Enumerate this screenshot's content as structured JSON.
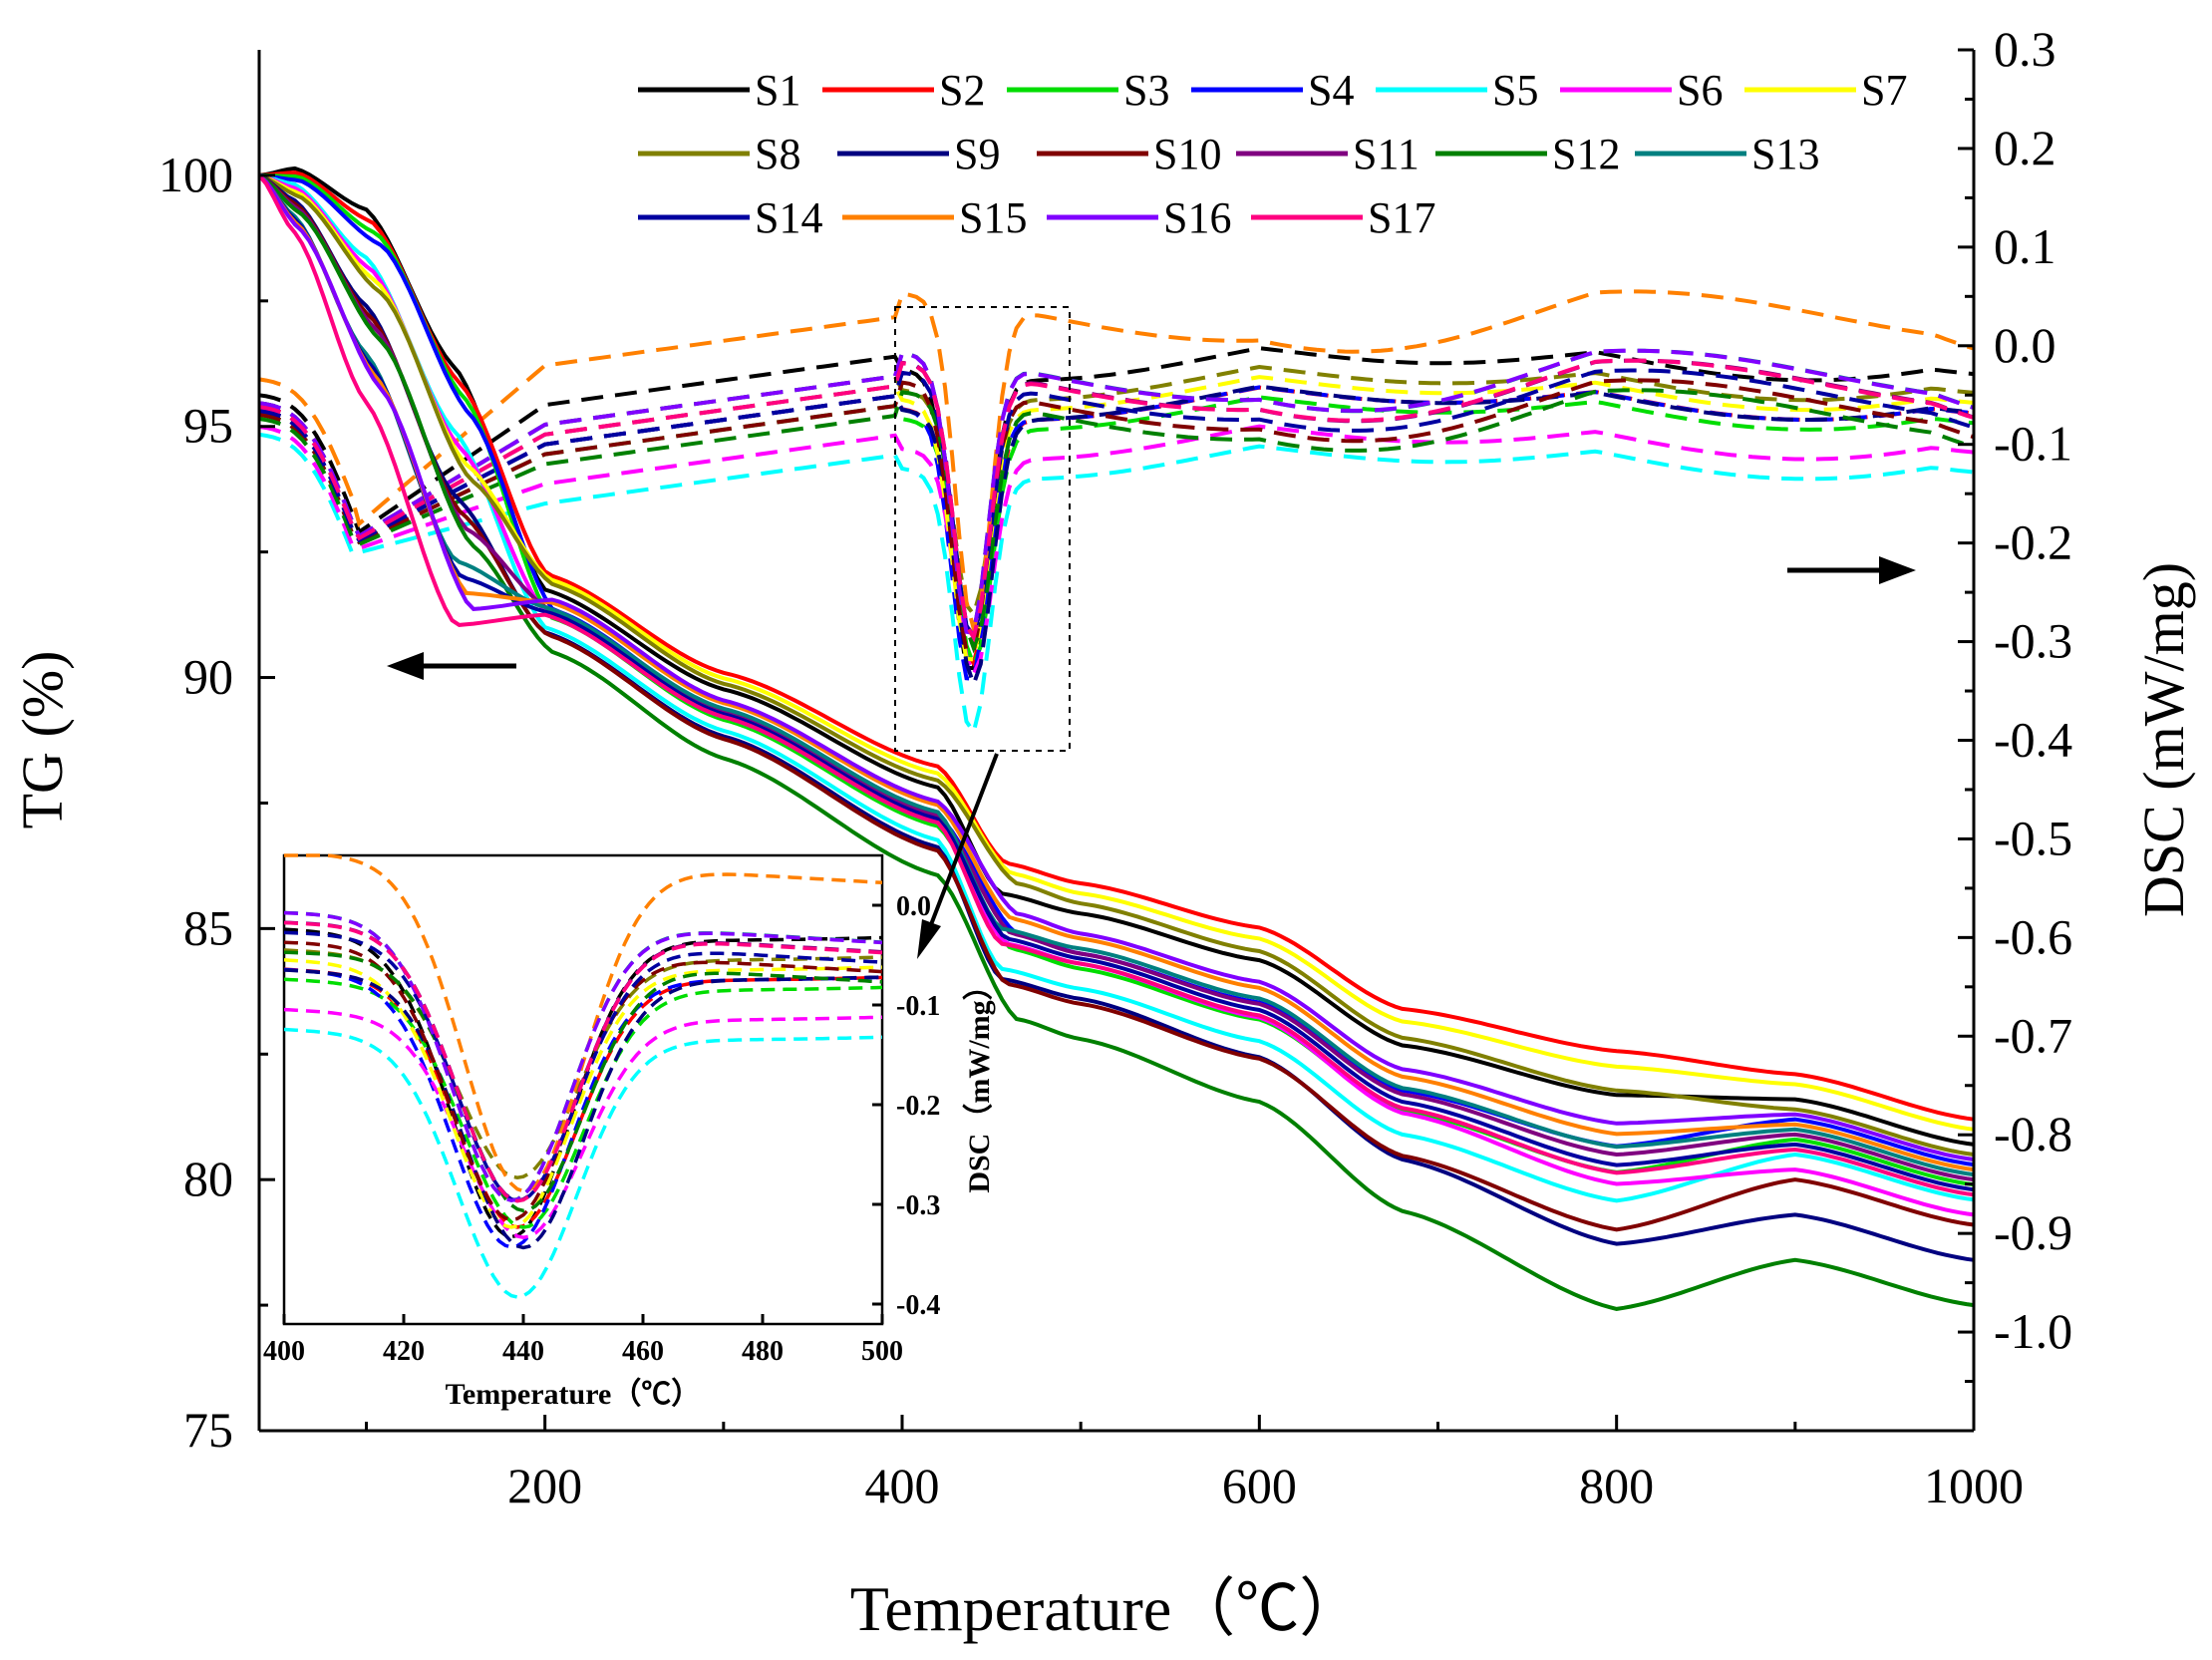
{
  "chart_data": {
    "type": "line",
    "main": {
      "xlabel": "Temperature（℃）",
      "ylabel_left": "TG (%)",
      "ylabel_right": "DSC (mW/mg)",
      "xlim": [
        40,
        1000
      ],
      "ylim_left": [
        75,
        102.5
      ],
      "ylim_right": [
        -1.1,
        0.3
      ],
      "x_ticks": [
        200,
        400,
        600,
        800,
        1000
      ],
      "x_minor_ticks": [
        100,
        300,
        500,
        700,
        900
      ],
      "left_ticks": [
        75,
        80,
        85,
        90,
        95,
        100
      ],
      "right_ticks": [
        "0.3",
        "0.2",
        "0.1",
        "0.0",
        "-0.1",
        "-0.2",
        "-0.3",
        "-0.4",
        "-0.5",
        "-0.6",
        "-0.7",
        "-0.8",
        "-0.9",
        "-1.0"
      ],
      "legend_position": "top-right",
      "arrows": [
        {
          "points_to": "left-axis",
          "at": {
            "x": 110,
            "y": 90.2
          }
        },
        {
          "points_to": "right-axis",
          "at": {
            "x": 930,
            "y": -0.2
          }
        }
      ]
    },
    "series": [
      {
        "name": "S1",
        "color": "#000000",
        "tg_end": 80.7,
        "tg_mid": 85.3,
        "dsc_base": 0.0,
        "dsc_min": -0.31
      },
      {
        "name": "S2",
        "color": "#ff0000",
        "tg_end": 81.2,
        "tg_mid": 85.9,
        "dsc_base": -0.04,
        "dsc_min": -0.3
      },
      {
        "name": "S3",
        "color": "#00dd00",
        "tg_end": 79.9,
        "tg_mid": 84.2,
        "dsc_base": -0.05,
        "dsc_min": -0.3
      },
      {
        "name": "S4",
        "color": "#0000ff",
        "tg_end": 80.3,
        "tg_mid": 84.5,
        "dsc_base": -0.04,
        "dsc_min": -0.32
      },
      {
        "name": "S5",
        "color": "#00ffff",
        "tg_end": 79.6,
        "tg_mid": 83.8,
        "dsc_base": -0.1,
        "dsc_min": -0.37
      },
      {
        "name": "S6",
        "color": "#ff00ff",
        "tg_end": 79.3,
        "tg_mid": 84.3,
        "dsc_base": -0.08,
        "dsc_min": -0.31
      },
      {
        "name": "S7",
        "color": "#ffff00",
        "tg_end": 81.0,
        "tg_mid": 85.7,
        "dsc_base": -0.03,
        "dsc_min": -0.3
      },
      {
        "name": "S8",
        "color": "#808000",
        "tg_end": 80.5,
        "tg_mid": 85.5,
        "dsc_base": -0.02,
        "dsc_min": -0.25
      },
      {
        "name": "S9",
        "color": "#000080",
        "tg_end": 78.4,
        "tg_mid": 83.6,
        "dsc_base": -0.04,
        "dsc_min": -0.32
      },
      {
        "name": "S10",
        "color": "#800000",
        "tg_end": 79.1,
        "tg_mid": 83.5,
        "dsc_base": -0.05,
        "dsc_min": -0.33
      },
      {
        "name": "S11",
        "color": "#800080",
        "tg_end": 80.0,
        "tg_mid": 84.5,
        "dsc_base": -0.03,
        "dsc_min": -0.31
      },
      {
        "name": "S12",
        "color": "#008000",
        "tg_end": 77.5,
        "tg_mid": 82.8,
        "dsc_base": -0.06,
        "dsc_min": -0.32
      },
      {
        "name": "S13",
        "color": "#008080",
        "tg_end": 80.1,
        "tg_mid": 84.6,
        "dsc_base": -0.02,
        "dsc_min": -0.31
      },
      {
        "name": "S14",
        "color": "#0000a0",
        "tg_end": 79.8,
        "tg_mid": 84.4,
        "dsc_base": -0.04,
        "dsc_min": -0.31
      },
      {
        "name": "S15",
        "color": "#ff8000",
        "tg_end": 80.2,
        "tg_mid": 84.8,
        "dsc_base": 0.04,
        "dsc_min": -0.3
      },
      {
        "name": "S16",
        "color": "#8000ff",
        "tg_end": 80.4,
        "tg_mid": 84.9,
        "dsc_base": -0.02,
        "dsc_min": -0.31
      },
      {
        "name": "S17",
        "color": "#ff0080",
        "tg_end": 79.7,
        "tg_mid": 84.3,
        "dsc_base": -0.03,
        "dsc_min": -0.31
      }
    ],
    "inset": {
      "xlabel": "Temperature（℃）",
      "ylabel": "DSC（mW/mg）",
      "xlim": [
        400,
        500
      ],
      "ylim": [
        -0.42,
        0.05
      ],
      "x_ticks": [
        "400",
        "420",
        "440",
        "460",
        "480",
        "500"
      ],
      "y_ticks": [
        "0.0",
        "-0.1",
        "-0.2",
        "-0.3",
        "-0.4"
      ]
    }
  }
}
